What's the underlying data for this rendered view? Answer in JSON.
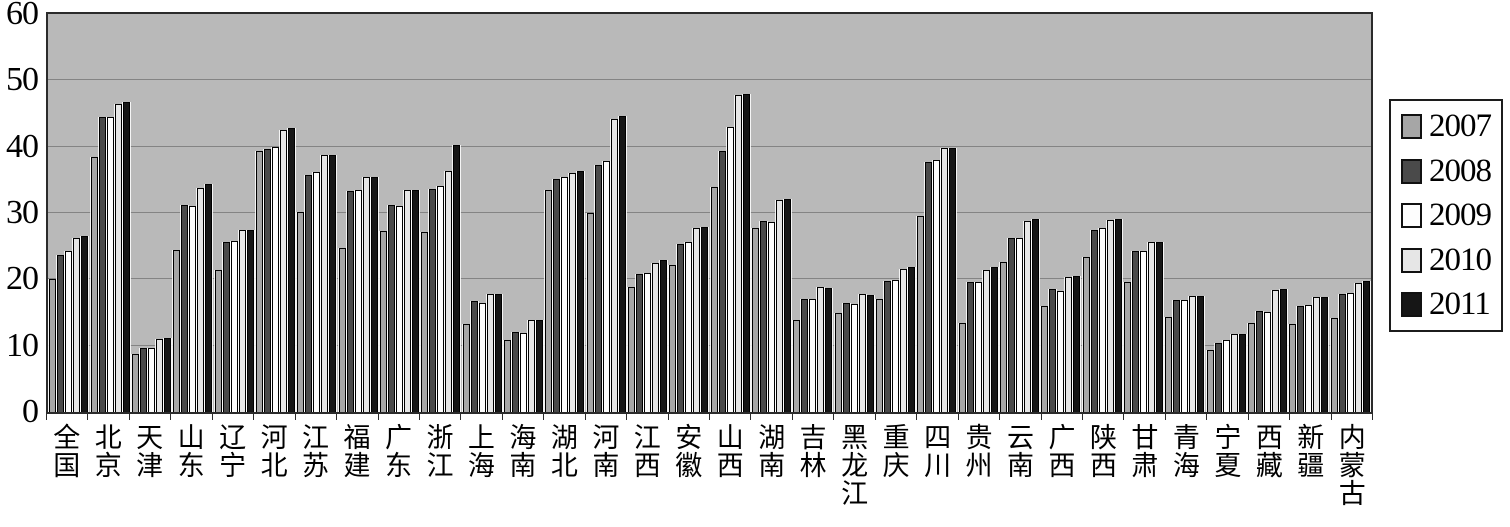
{
  "chart_data": {
    "type": "bar",
    "title": "",
    "xlabel": "",
    "ylabel": "",
    "ylim": [
      0,
      60
    ],
    "yticks": [
      0,
      10,
      20,
      30,
      40,
      50,
      60
    ],
    "grid": "horizontal",
    "legend_position": "right",
    "plot_bg": "#b9b9b9",
    "grid_color": "#848484",
    "axis_color": "#2b2b2b",
    "categories": [
      "全国",
      "北京",
      "天津",
      "山东",
      "辽宁",
      "河北",
      "江苏",
      "福建",
      "广东",
      "浙江",
      "上海",
      "海南",
      "湖北",
      "河南",
      "江西",
      "安徽",
      "山西",
      "湖南",
      "吉林",
      "黑龙江",
      "重庆",
      "四川",
      "贵州",
      "云南",
      "广西",
      "陕西",
      "甘肃",
      "青海",
      "宁夏",
      "西藏",
      "新疆",
      "内蒙古"
    ],
    "series": [
      {
        "name": "2007",
        "color": "#a6a6a6",
        "values": [
          20.1,
          38.5,
          8.7,
          24.4,
          21.4,
          39.4,
          30.1,
          24.8,
          27.3,
          27.1,
          13.3,
          10.9,
          33.4,
          30.0,
          18.9,
          22.2,
          33.9,
          27.8,
          13.8,
          15.0,
          17.1,
          29.5,
          13.4,
          22.6,
          16.0,
          23.3,
          19.6,
          14.3,
          9.3,
          13.4,
          13.3,
          14.2
        ]
      },
      {
        "name": "2008",
        "color": "#4a4a4a",
        "values": [
          23.6,
          44.4,
          9.6,
          31.2,
          25.6,
          39.6,
          35.8,
          33.3,
          31.2,
          33.6,
          16.8,
          12.0,
          35.1,
          37.2,
          20.8,
          25.4,
          39.3,
          28.8,
          17.1,
          16.4,
          19.7,
          37.7,
          19.6,
          26.3,
          18.5,
          27.5,
          24.2,
          16.9,
          10.4,
          15.3,
          16.0,
          17.8
        ]
      },
      {
        "name": "2009",
        "color": "#fdfdfd",
        "values": [
          24.3,
          44.5,
          9.7,
          31.0,
          25.8,
          40.0,
          36.2,
          33.4,
          31.0,
          34.0,
          16.5,
          11.9,
          35.4,
          37.9,
          21.0,
          25.7,
          43.0,
          28.7,
          17.0,
          16.3,
          19.9,
          38.0,
          19.6,
          26.2,
          18.3,
          27.8,
          24.3,
          16.9,
          10.8,
          15.1,
          16.2,
          18.0
        ]
      },
      {
        "name": "2010",
        "color": "#e6e6e6",
        "values": [
          26.2,
          46.5,
          11.0,
          33.8,
          27.4,
          42.5,
          38.8,
          35.5,
          33.4,
          36.3,
          17.8,
          13.8,
          36.1,
          44.1,
          22.4,
          27.8,
          47.8,
          31.9,
          18.8,
          17.8,
          21.6,
          39.8,
          21.4,
          28.8,
          20.4,
          28.9,
          25.6,
          17.5,
          11.7,
          18.4,
          17.3,
          19.5
        ]
      },
      {
        "name": "2011",
        "color": "#161616",
        "values": [
          26.5,
          46.7,
          11.1,
          34.3,
          27.5,
          42.8,
          38.8,
          35.5,
          33.4,
          40.2,
          17.8,
          13.9,
          36.4,
          44.6,
          22.9,
          27.9,
          48.0,
          32.1,
          18.7,
          17.7,
          21.8,
          39.8,
          21.8,
          29.1,
          20.5,
          29.1,
          25.7,
          17.5,
          11.8,
          18.5,
          17.4,
          19.7
        ]
      }
    ]
  }
}
